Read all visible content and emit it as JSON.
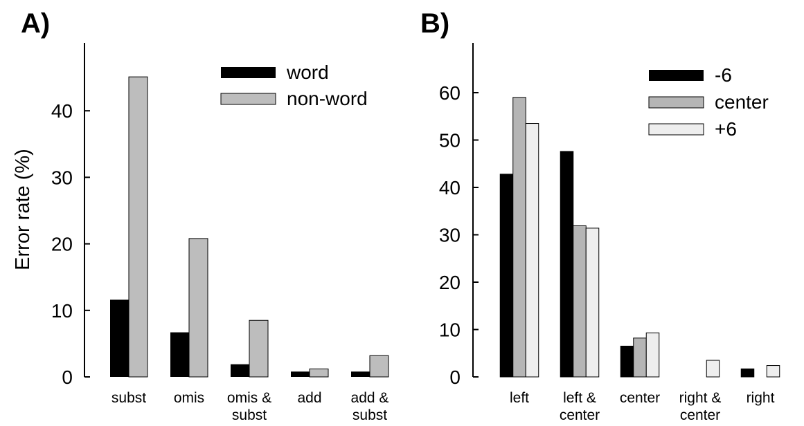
{
  "chart_data": [
    {
      "type": "bar",
      "panel_label": "A)",
      "ylabel": "Error rate (%)",
      "xlabel": "",
      "ylim": [
        0,
        50
      ],
      "yticks": [
        0,
        10,
        20,
        30,
        40
      ],
      "grid": false,
      "legend_position": "top-right",
      "categories": [
        [
          "subst"
        ],
        [
          "omis"
        ],
        [
          "omis &",
          "subst"
        ],
        [
          "add"
        ],
        [
          "add &",
          "subst"
        ]
      ],
      "series": [
        {
          "name": "word",
          "color": "#000000",
          "values": [
            11.6,
            6.7,
            1.9,
            0.8,
            0.8
          ]
        },
        {
          "name": "non-word",
          "color": "#bdbdbd",
          "values": [
            45.1,
            20.8,
            8.5,
            1.2,
            3.2
          ]
        }
      ]
    },
    {
      "type": "bar",
      "panel_label": "B)",
      "ylabel": "",
      "xlabel": "",
      "ylim": [
        0,
        70
      ],
      "yticks": [
        0,
        10,
        20,
        30,
        40,
        50,
        60
      ],
      "grid": false,
      "legend_position": "top-right",
      "categories": [
        [
          "left"
        ],
        [
          "left &",
          "center"
        ],
        [
          "center"
        ],
        [
          "right &",
          "center"
        ],
        [
          "right"
        ]
      ],
      "series": [
        {
          "name": "-6",
          "color": "#000000",
          "values": [
            42.8,
            47.6,
            6.5,
            0,
            1.7
          ]
        },
        {
          "name": "center",
          "color": "#b5b5b5",
          "values": [
            59.0,
            31.9,
            8.2,
            0,
            0
          ]
        },
        {
          "name": "+6",
          "color": "#eeeeee",
          "values": [
            53.5,
            31.4,
            9.3,
            3.5,
            2.4
          ]
        }
      ]
    }
  ]
}
